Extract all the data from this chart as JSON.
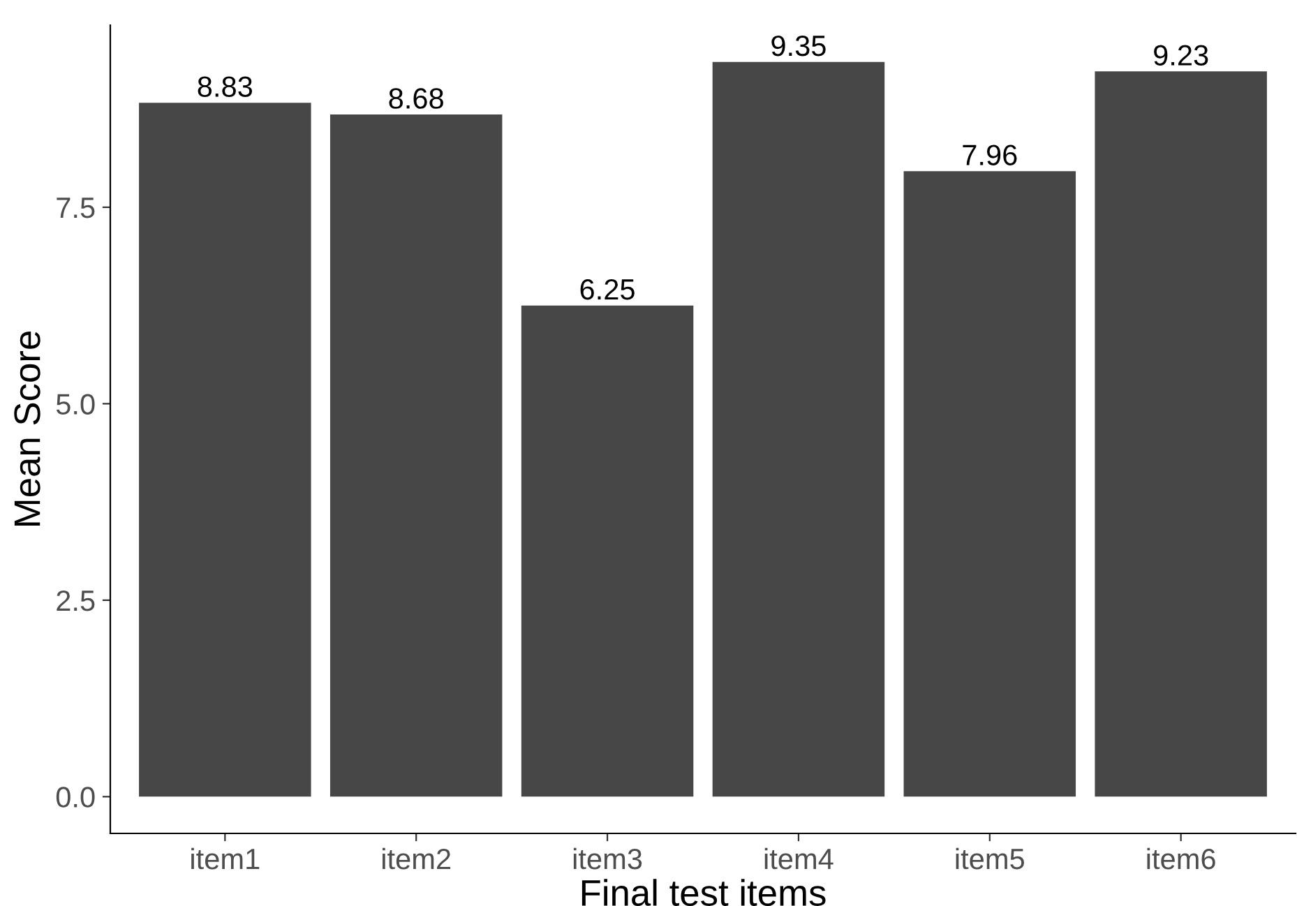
{
  "chart_data": {
    "type": "bar",
    "xlabel": "Final test items",
    "ylabel": "Mean Score",
    "categories": [
      "item1",
      "item2",
      "item3",
      "item4",
      "item5",
      "item6"
    ],
    "values": [
      8.83,
      8.68,
      6.25,
      9.35,
      7.96,
      9.23
    ],
    "color": "#474747",
    "ylim": [
      -0.4675,
      9.8175
    ],
    "yticks": [
      {
        "value": 0,
        "label": "0.0"
      },
      {
        "value": 2.5,
        "label": "2.5"
      },
      {
        "value": 5,
        "label": "5.0"
      },
      {
        "value": 7.5,
        "label": "7.5"
      }
    ],
    "data_labels": true,
    "grid": false,
    "legend": false
  }
}
